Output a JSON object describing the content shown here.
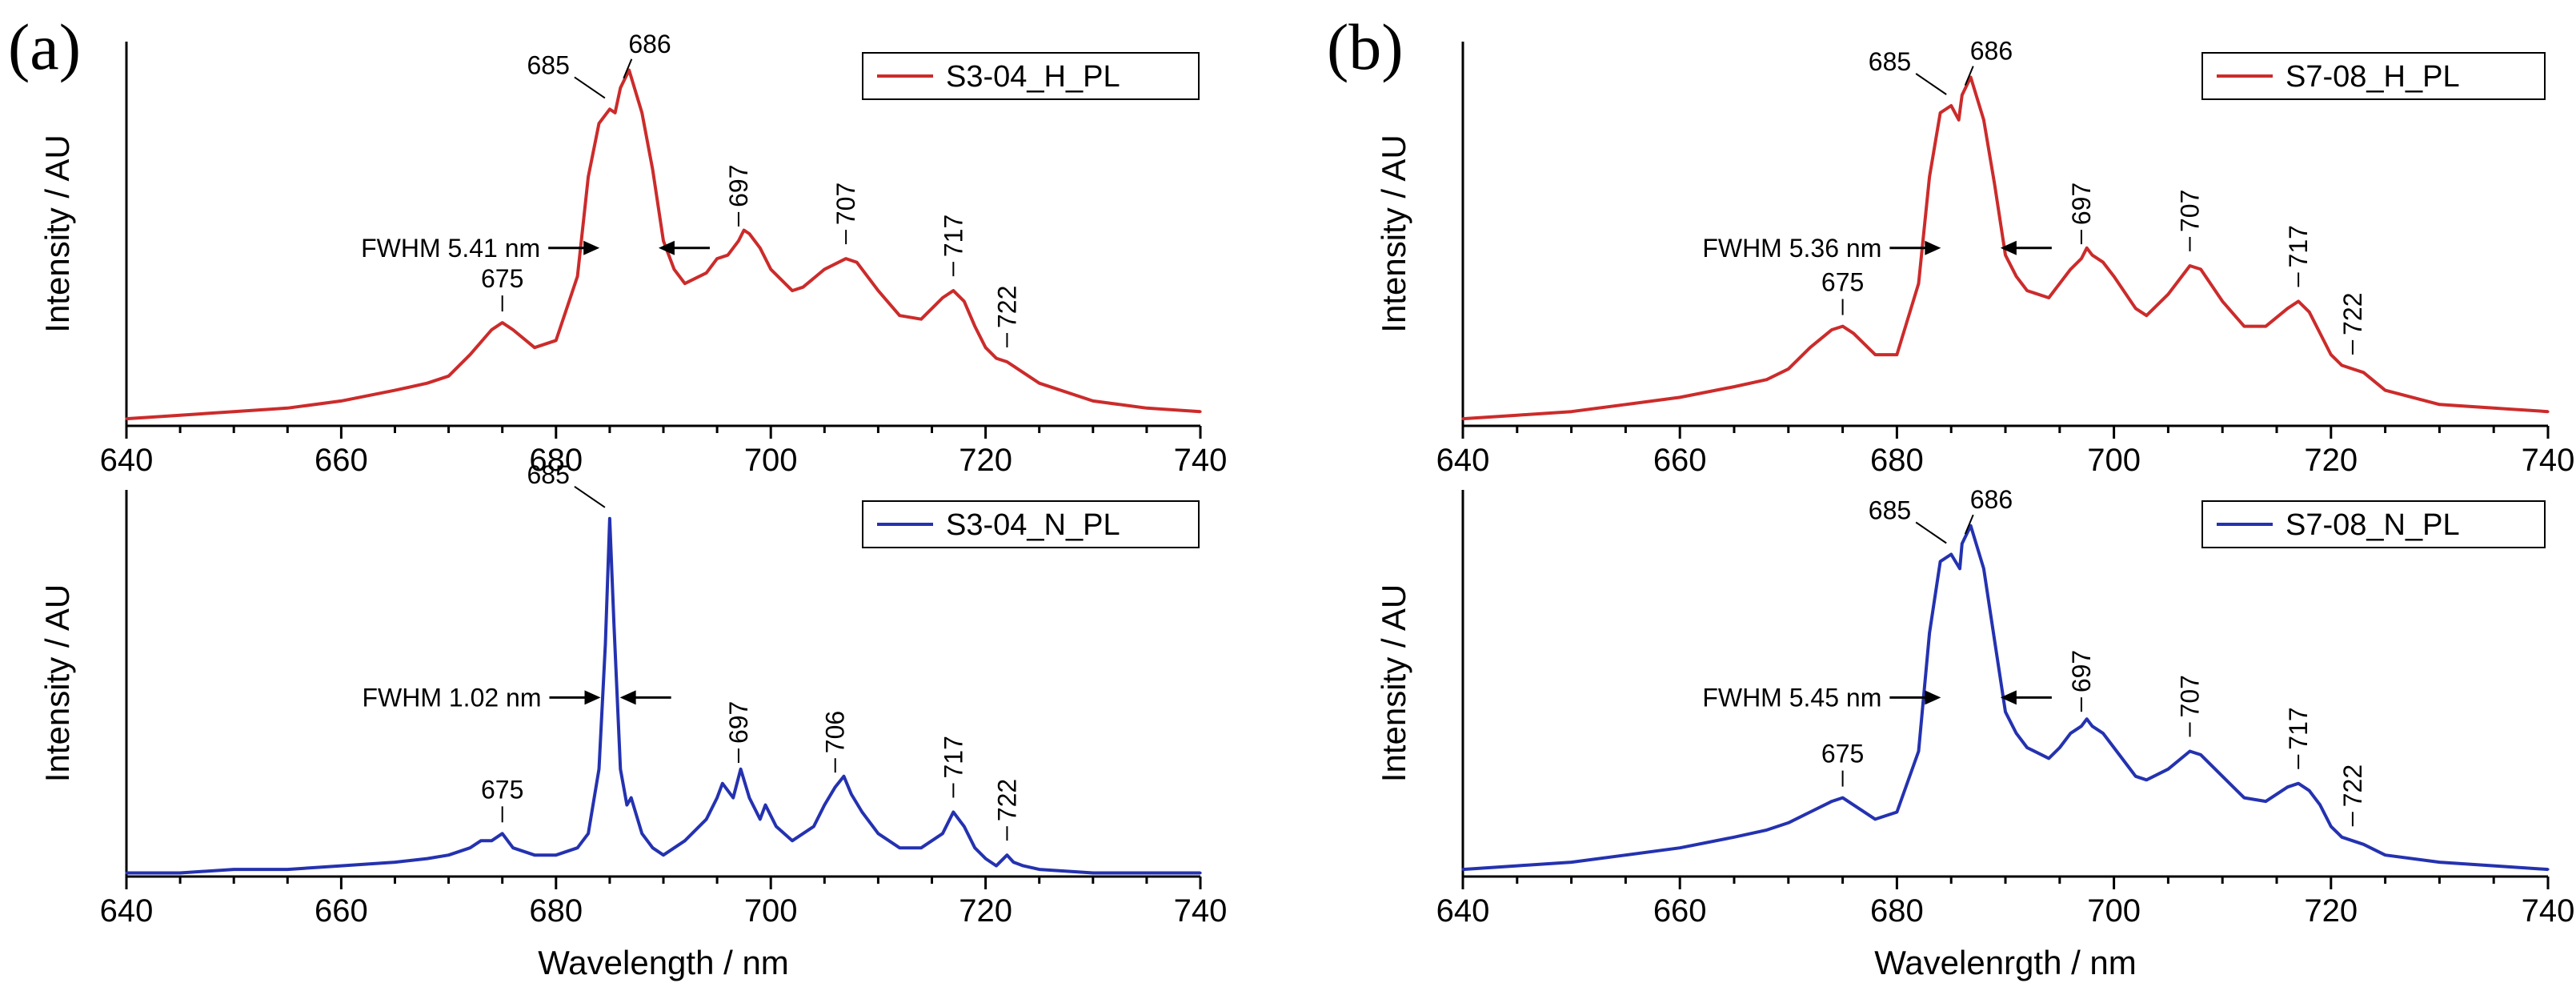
{
  "figure": {
    "panel_a_label": "(a)",
    "panel_b_label": "(b)"
  },
  "colors": {
    "red_series": "#cc2b2b",
    "blue_series": "#2432b0",
    "axis": "#000000"
  },
  "chart_data": [
    {
      "type": "line",
      "id": "a-top",
      "legend": "S3-04_H_PL",
      "color": "#cc2b2b",
      "xlabel": "",
      "ylabel": "Intensity / AU",
      "xlim": [
        640,
        740
      ],
      "xticks": [
        640,
        660,
        680,
        700,
        720,
        740
      ],
      "ylim": [
        0,
        1.08
      ],
      "x": [
        640,
        645,
        650,
        655,
        660,
        665,
        668,
        670,
        672,
        674,
        675,
        676,
        678,
        680,
        682,
        683,
        684,
        685,
        685.5,
        686,
        686.8,
        688,
        689,
        690,
        691,
        692,
        694,
        695,
        696,
        697,
        697.5,
        698,
        699,
        700,
        702,
        703,
        705,
        707,
        708,
        710,
        712,
        714,
        716,
        717,
        718,
        719,
        720,
        721,
        722,
        723,
        725,
        730,
        735,
        740
      ],
      "values": [
        0.02,
        0.03,
        0.04,
        0.05,
        0.07,
        0.1,
        0.12,
        0.14,
        0.2,
        0.27,
        0.29,
        0.27,
        0.22,
        0.24,
        0.42,
        0.7,
        0.85,
        0.89,
        0.88,
        0.95,
        1.0,
        0.88,
        0.72,
        0.52,
        0.44,
        0.4,
        0.43,
        0.47,
        0.48,
        0.52,
        0.55,
        0.54,
        0.5,
        0.44,
        0.38,
        0.39,
        0.44,
        0.47,
        0.46,
        0.38,
        0.31,
        0.3,
        0.36,
        0.38,
        0.35,
        0.28,
        0.22,
        0.19,
        0.18,
        0.16,
        0.12,
        0.07,
        0.05,
        0.04
      ],
      "peaks": [
        675,
        685,
        686,
        697,
        707,
        717,
        722
      ],
      "fwhm_label": "FWHM 5.41 nm"
    },
    {
      "type": "line",
      "id": "a-bottom",
      "legend": "S3-04_N_PL",
      "color": "#2432b0",
      "xlabel": "Wavelength / nm",
      "ylabel": "Intensity / AU",
      "xlim": [
        640,
        740
      ],
      "xticks": [
        640,
        660,
        680,
        700,
        720,
        740
      ],
      "ylim": [
        0,
        1.08
      ],
      "x": [
        640,
        645,
        650,
        655,
        660,
        665,
        668,
        670,
        672,
        673,
        674,
        675,
        676,
        678,
        680,
        682,
        683,
        684,
        684.6,
        685,
        685.4,
        686,
        686.6,
        687,
        688,
        689,
        690,
        692,
        694,
        695,
        695.5,
        696.5,
        697.2,
        698,
        699,
        699.5,
        700.5,
        702,
        704,
        705,
        706,
        706.8,
        707.5,
        708.5,
        710,
        712,
        714,
        716,
        717,
        718,
        719,
        720,
        721,
        722,
        722.6,
        723.5,
        725,
        730,
        735,
        740
      ],
      "values": [
        0.01,
        0.01,
        0.02,
        0.02,
        0.03,
        0.04,
        0.05,
        0.06,
        0.08,
        0.1,
        0.1,
        0.12,
        0.08,
        0.06,
        0.06,
        0.08,
        0.12,
        0.3,
        0.65,
        1.0,
        0.7,
        0.3,
        0.2,
        0.22,
        0.12,
        0.08,
        0.06,
        0.1,
        0.16,
        0.22,
        0.26,
        0.22,
        0.3,
        0.22,
        0.16,
        0.2,
        0.14,
        0.1,
        0.14,
        0.2,
        0.25,
        0.28,
        0.23,
        0.18,
        0.12,
        0.08,
        0.08,
        0.12,
        0.18,
        0.14,
        0.08,
        0.05,
        0.03,
        0.06,
        0.04,
        0.03,
        0.02,
        0.01,
        0.01,
        0.01
      ],
      "peaks": [
        675,
        685,
        697,
        706,
        717,
        722
      ],
      "fwhm_label": "FWHM 1.02 nm"
    },
    {
      "type": "line",
      "id": "b-top",
      "legend": "S7-08_H_PL",
      "color": "#cc2b2b",
      "xlabel": "",
      "ylabel": "Intensity / AU",
      "xlim": [
        640,
        740
      ],
      "xticks": [
        640,
        660,
        680,
        700,
        720,
        740
      ],
      "ylim": [
        0,
        1.08
      ],
      "x": [
        640,
        645,
        650,
        655,
        660,
        665,
        668,
        670,
        672,
        674,
        675,
        676,
        678,
        680,
        682,
        683,
        684,
        685,
        685.7,
        686,
        686.8,
        688,
        689,
        690,
        691,
        692,
        694,
        695,
        696,
        697,
        697.5,
        698,
        699,
        700,
        702,
        703,
        705,
        707,
        708,
        710,
        712,
        714,
        716,
        717,
        718,
        719,
        720,
        721,
        722,
        723,
        725,
        730,
        735,
        740
      ],
      "values": [
        0.02,
        0.03,
        0.04,
        0.06,
        0.08,
        0.11,
        0.13,
        0.16,
        0.22,
        0.27,
        0.28,
        0.26,
        0.2,
        0.2,
        0.4,
        0.7,
        0.88,
        0.9,
        0.86,
        0.93,
        0.98,
        0.86,
        0.68,
        0.48,
        0.42,
        0.38,
        0.36,
        0.4,
        0.44,
        0.47,
        0.5,
        0.48,
        0.46,
        0.42,
        0.33,
        0.31,
        0.37,
        0.45,
        0.44,
        0.35,
        0.28,
        0.28,
        0.33,
        0.35,
        0.32,
        0.26,
        0.2,
        0.17,
        0.16,
        0.15,
        0.1,
        0.06,
        0.05,
        0.04
      ],
      "peaks": [
        675,
        685,
        686,
        697,
        707,
        717,
        722
      ],
      "fwhm_label": "FWHM 5.36 nm"
    },
    {
      "type": "line",
      "id": "b-bottom",
      "legend": "S7-08_N_PL",
      "color": "#2432b0",
      "xlabel": "Wavelenrgth / nm",
      "ylabel": "Intensity / AU",
      "xlim": [
        640,
        740
      ],
      "xticks": [
        640,
        660,
        680,
        700,
        720,
        740
      ],
      "ylim": [
        0,
        1.08
      ],
      "x": [
        640,
        645,
        650,
        655,
        660,
        665,
        668,
        670,
        672,
        674,
        675,
        676,
        678,
        680,
        682,
        683,
        684,
        685,
        685.8,
        686,
        686.8,
        688,
        689,
        690,
        691,
        692,
        694,
        695,
        696,
        697,
        697.5,
        698,
        699,
        700,
        702,
        703,
        705,
        707,
        708,
        710,
        712,
        714,
        716,
        717,
        718,
        719,
        720,
        721,
        722,
        723,
        725,
        730,
        735,
        740
      ],
      "values": [
        0.02,
        0.03,
        0.04,
        0.06,
        0.08,
        0.11,
        0.13,
        0.15,
        0.18,
        0.21,
        0.22,
        0.2,
        0.16,
        0.18,
        0.35,
        0.68,
        0.88,
        0.9,
        0.86,
        0.93,
        0.98,
        0.86,
        0.66,
        0.46,
        0.4,
        0.36,
        0.33,
        0.36,
        0.4,
        0.42,
        0.44,
        0.42,
        0.4,
        0.36,
        0.28,
        0.27,
        0.3,
        0.35,
        0.34,
        0.28,
        0.22,
        0.21,
        0.25,
        0.26,
        0.24,
        0.2,
        0.14,
        0.11,
        0.1,
        0.09,
        0.06,
        0.04,
        0.03,
        0.02
      ],
      "peaks": [
        675,
        685,
        686,
        697,
        707,
        717,
        722
      ],
      "fwhm_label": "FWHM 5.45 nm"
    }
  ]
}
